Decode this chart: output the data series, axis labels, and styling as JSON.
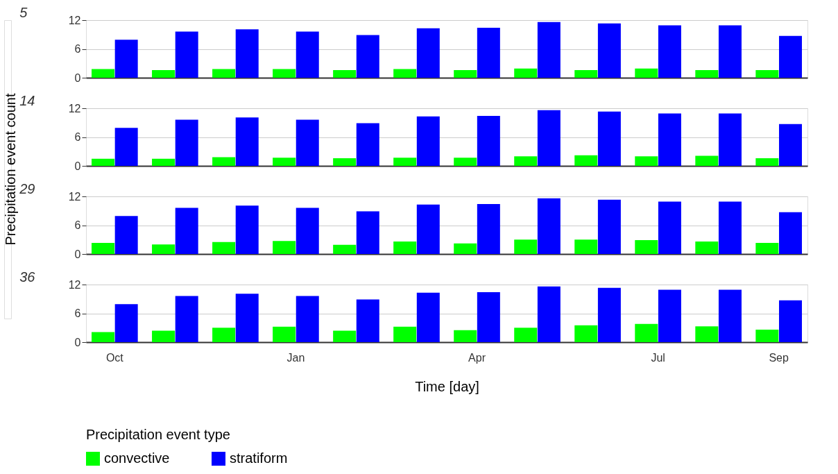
{
  "chart_data": [
    {
      "type": "bar",
      "title": "5",
      "ylabel": "Precipitation event count",
      "categories": [
        null,
        null,
        null,
        null,
        null,
        null,
        null,
        null,
        null,
        null,
        null,
        null
      ],
      "ylim": [
        0,
        12
      ],
      "yticks": [
        0,
        6,
        12
      ],
      "grid": "y",
      "tick_labels": "y",
      "series": [
        {
          "color": "#00ff00",
          "values": [
            1.8,
            1.6,
            1.8,
            1.8,
            1.6,
            1.8,
            1.6,
            1.9,
            1.6,
            1.9,
            1.6,
            1.6
          ]
        },
        {
          "color": "#0000ff",
          "values": [
            7.9,
            9.6,
            10.1,
            9.6,
            8.9,
            10.3,
            10.4,
            11.6,
            11.3,
            10.9,
            10.9,
            8.7
          ]
        }
      ]
    },
    {
      "type": "bar",
      "title": "14",
      "categories": [
        null,
        null,
        null,
        null,
        null,
        null,
        null,
        null,
        null,
        null,
        null,
        null
      ],
      "ylim": [
        0,
        12
      ],
      "yticks": [
        0,
        6,
        12
      ],
      "grid": "y",
      "tick_labels": "y",
      "series": [
        {
          "color": "#00ff00",
          "values": [
            1.5,
            1.5,
            1.8,
            1.7,
            1.6,
            1.7,
            1.7,
            2.0,
            2.2,
            2.0,
            2.1,
            1.6
          ]
        },
        {
          "color": "#0000ff",
          "values": [
            7.9,
            9.6,
            10.1,
            9.6,
            8.9,
            10.3,
            10.4,
            11.6,
            11.3,
            10.9,
            10.9,
            8.7
          ]
        }
      ]
    },
    {
      "type": "bar",
      "title": "29",
      "categories": [
        null,
        null,
        null,
        null,
        null,
        null,
        null,
        null,
        null,
        null,
        null,
        null
      ],
      "ylim": [
        0,
        12
      ],
      "yticks": [
        0,
        6,
        12
      ],
      "grid": "y",
      "tick_labels": "y",
      "series": [
        {
          "color": "#00ff00",
          "values": [
            2.3,
            2.0,
            2.5,
            2.7,
            1.9,
            2.6,
            2.2,
            3.0,
            3.0,
            2.9,
            2.6,
            2.3
          ]
        },
        {
          "color": "#0000ff",
          "values": [
            7.9,
            9.6,
            10.1,
            9.6,
            8.9,
            10.3,
            10.4,
            11.6,
            11.3,
            10.9,
            10.9,
            8.7
          ]
        }
      ]
    },
    {
      "type": "bar",
      "title": "36",
      "xlabel": "Time [day]",
      "legend": "bottom",
      "legend_title": "Precipitation event type",
      "categories": [
        "Oct",
        null,
        null,
        "Jan",
        null,
        null,
        "Apr",
        null,
        null,
        "Jul",
        null,
        "Sep"
      ],
      "ylim": [
        0,
        12
      ],
      "yticks": [
        0,
        6,
        12
      ],
      "grid": "y",
      "series": [
        {
          "name": "convective",
          "color": "#00ff00",
          "values": [
            2.1,
            2.4,
            3.0,
            3.2,
            2.4,
            3.2,
            2.5,
            3.0,
            3.5,
            3.8,
            3.3,
            2.6
          ]
        },
        {
          "name": "stratiform",
          "color": "#0000ff",
          "values": [
            7.9,
            9.6,
            10.1,
            9.6,
            8.9,
            10.3,
            10.4,
            11.6,
            11.3,
            10.9,
            10.9,
            8.7
          ]
        }
      ]
    }
  ]
}
